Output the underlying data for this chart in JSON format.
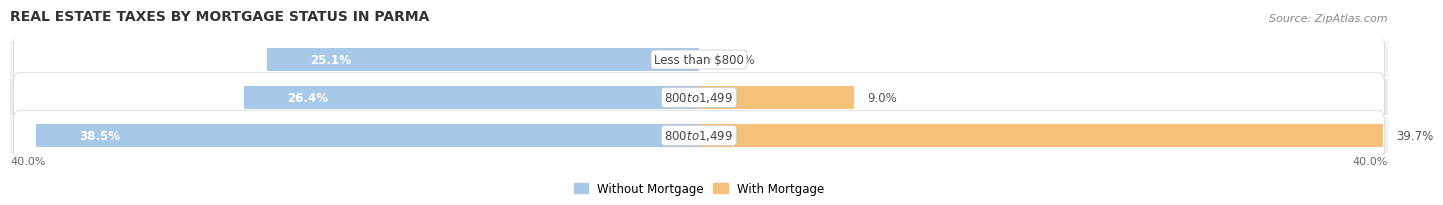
{
  "title": "REAL ESTATE TAXES BY MORTGAGE STATUS IN PARMA",
  "source": "Source: ZipAtlas.com",
  "rows": [
    {
      "label": "Less than $800",
      "without_mortgage": 25.1,
      "with_mortgage": 0.0
    },
    {
      "label": "$800 to $1,499",
      "without_mortgage": 26.4,
      "with_mortgage": 9.0
    },
    {
      "label": "$800 to $1,499",
      "without_mortgage": 38.5,
      "with_mortgage": 39.7
    }
  ],
  "x_max": 40.0,
  "x_min": -40.0,
  "color_without": "#a8c8e8",
  "color_with": "#f5c07a",
  "color_without_dark": "#7aafd4",
  "color_with_dark": "#f0a840",
  "row_bg_colors": [
    "#f0f2f5",
    "#e8eaed",
    "#dfe1e5"
  ],
  "bar_height": 0.62,
  "legend_without": "Without Mortgage",
  "legend_with": "With Mortgage",
  "bottom_left_label": "40.0%",
  "bottom_right_label": "40.0%",
  "title_fontsize": 10,
  "source_fontsize": 8,
  "label_fontsize": 8.5,
  "value_fontsize": 8.5,
  "tick_fontsize": 8
}
